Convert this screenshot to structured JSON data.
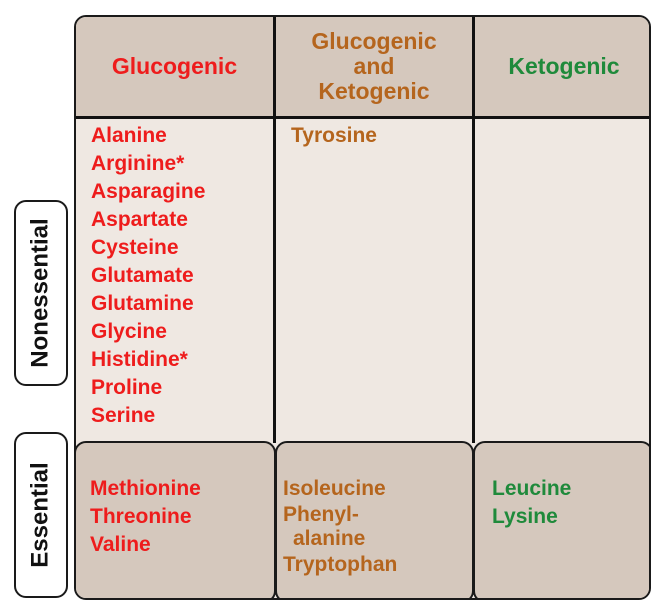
{
  "colors": {
    "glucogenic": "#ee1c1c",
    "both": "#b5651d",
    "ketogenic": "#1f8a3b"
  },
  "headers": {
    "glucogenic": "Glucogenic",
    "both": [
      "Glucogenic",
      "and",
      "Ketogenic"
    ],
    "ketogenic": "Ketogenic"
  },
  "row_labels": {
    "nonessential": "Nonessential",
    "essential": "Essential"
  },
  "nonessential": {
    "glucogenic": [
      "Alanine",
      "Arginine*",
      "Asparagine",
      "Aspartate",
      "Cysteine",
      "Glutamate",
      "Glutamine",
      "Glycine",
      "Histidine*",
      "Proline",
      "Serine"
    ],
    "both": [
      "Tyrosine"
    ],
    "ketogenic": []
  },
  "essential": {
    "glucogenic": [
      "Methionine",
      "Threonine",
      "Valine"
    ],
    "both": [
      "Isoleucine",
      "Phenyl-",
      "alanine",
      "Tryptophan"
    ],
    "ketogenic": [
      "Leucine",
      "Lysine"
    ]
  }
}
